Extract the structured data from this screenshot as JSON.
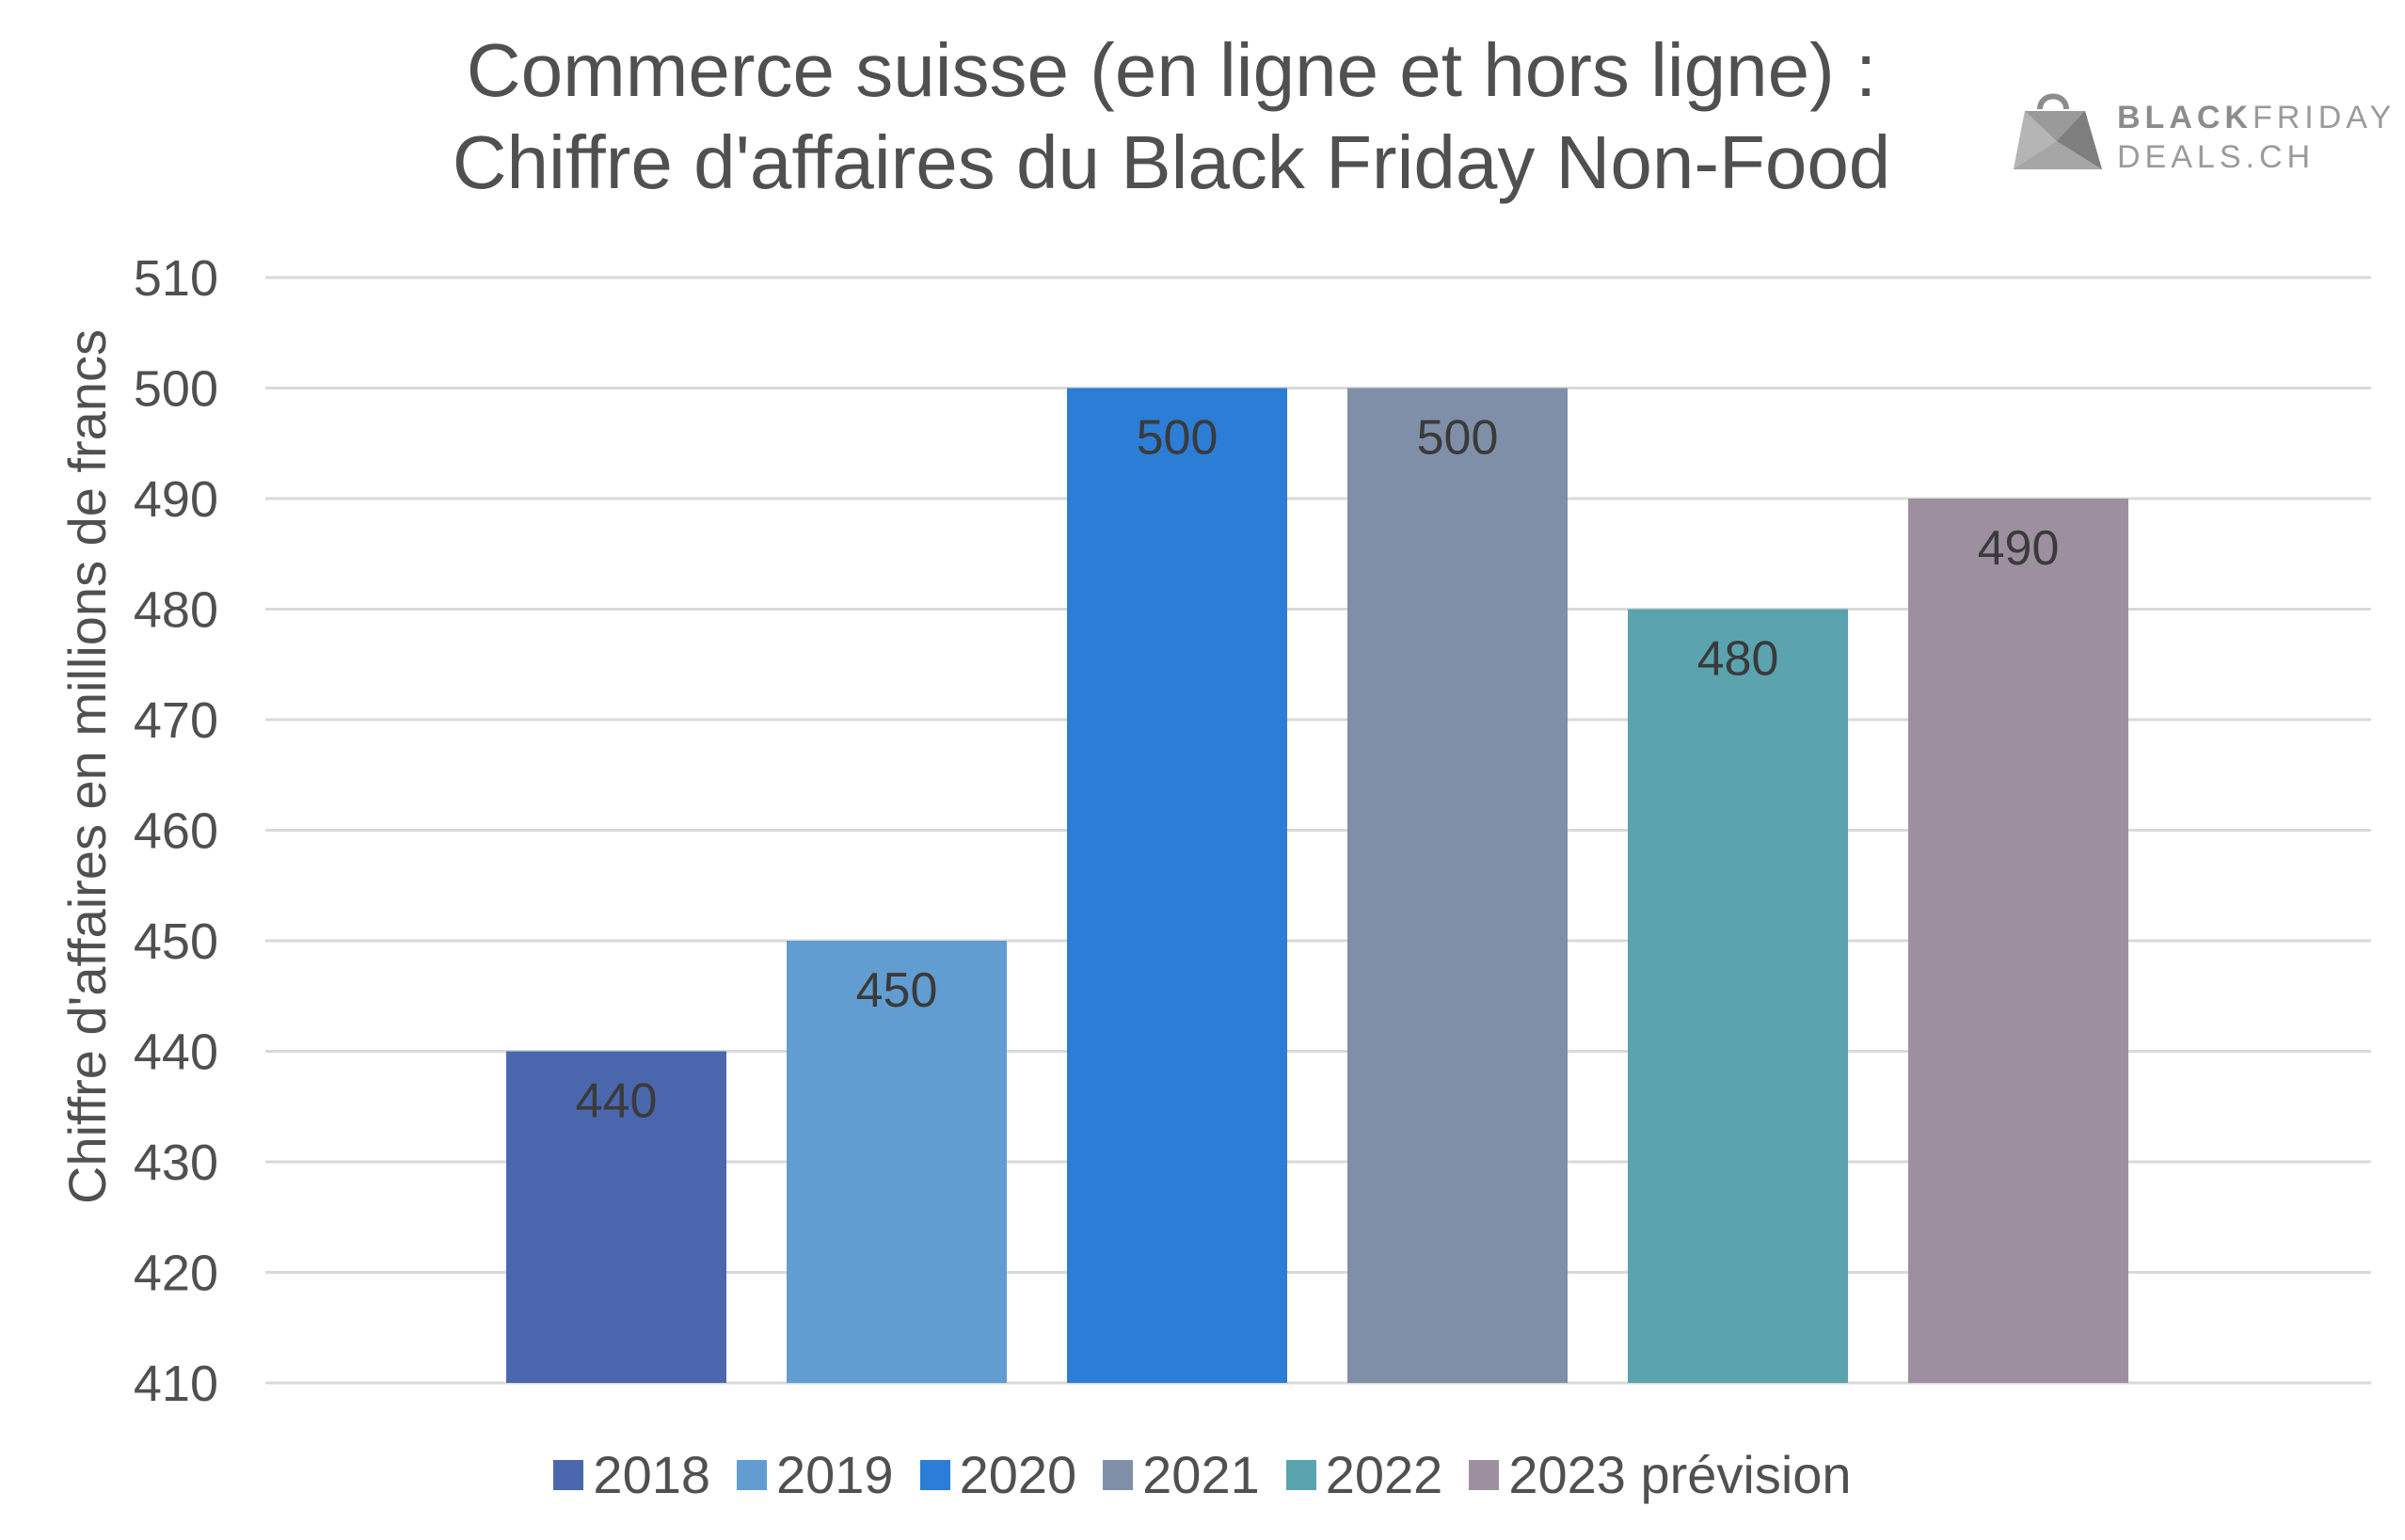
{
  "header": {
    "title_line1": "Commerce suisse (en ligne et hors ligne) :",
    "title_line2": "Chiffre d'affaires du Black Friday Non-Food"
  },
  "logo": {
    "word1": "BLACK",
    "word2": "FRIDAY",
    "word3": "DEALS.CH",
    "icon": "shopping-bag-icon"
  },
  "chart_data": {
    "type": "bar",
    "title": "Commerce suisse (en ligne et hors ligne) : Chiffre d'affaires du Black Friday Non-Food",
    "xlabel": "",
    "ylabel": "Chiffre d'affaires en millions de francs",
    "ylim": [
      410,
      510
    ],
    "yticks": [
      410,
      420,
      430,
      440,
      450,
      460,
      470,
      480,
      490,
      500,
      510
    ],
    "grid": true,
    "legend_position": "bottom",
    "series": [
      {
        "name": "2018",
        "value": 440,
        "color": "#4a66ad"
      },
      {
        "name": "2019",
        "value": 450,
        "color": "#619dd1"
      },
      {
        "name": "2020",
        "value": 500,
        "color": "#2b7dd6"
      },
      {
        "name": "2021",
        "value": 500,
        "color": "#7f8fa8"
      },
      {
        "name": "2022",
        "value": 480,
        "color": "#5aa3af"
      },
      {
        "name": "2023 prévision",
        "value": 490,
        "color": "#9d8fa0"
      }
    ],
    "data_labels": [
      "440",
      "450",
      "500",
      "500",
      "480",
      "490"
    ]
  }
}
